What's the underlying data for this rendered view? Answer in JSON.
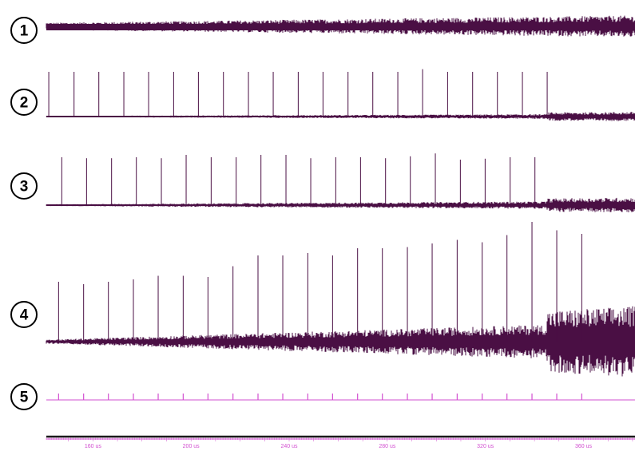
{
  "chart_data": {
    "type": "line",
    "xlabel": "",
    "ylabel": "",
    "xlim": [
      141,
      381
    ],
    "x_ticks": [
      {
        "value": 160,
        "label": "160 us"
      },
      {
        "value": 200,
        "label": "200 us"
      },
      {
        "value": 240,
        "label": "240 us"
      },
      {
        "value": 280,
        "label": "280 us"
      },
      {
        "value": 320,
        "label": "320 us"
      },
      {
        "value": 360,
        "label": "360 us"
      }
    ],
    "grid": false,
    "legend": "none",
    "colors": {
      "trace": "#4a0f44",
      "marker_trace": "#d24fd0",
      "axis": "#1a1a1a",
      "tick_label": "#d24fd0",
      "badge_text": "#000000"
    },
    "traces": [
      {
        "label": "1",
        "kind": "noise",
        "noise_start": 0.28,
        "noise_end": 0.85,
        "pulses_us": []
      },
      {
        "label": "2",
        "kind": "pulses",
        "noise_start": 0.04,
        "noise_end": 0.18,
        "pulses_us": [
          142.0,
          152.3,
          162.4,
          172.6,
          182.7,
          192.9,
          203.0,
          213.2,
          223.4,
          233.5,
          243.7,
          253.8,
          264.0,
          274.1,
          284.3,
          294.4,
          304.6,
          314.8,
          324.9,
          335.1,
          345.2
        ],
        "amplitudes": [
          1.0,
          1.0,
          1.0,
          1.0,
          1.0,
          1.0,
          1.0,
          1.0,
          1.0,
          1.0,
          1.0,
          1.0,
          1.0,
          1.0,
          1.0,
          1.06,
          1.0,
          1.0,
          1.0,
          1.0,
          1.0
        ]
      },
      {
        "label": "3",
        "kind": "pulses",
        "noise_start": 0.05,
        "noise_end": 0.24,
        "pulses_us": [
          147.3,
          157.4,
          167.6,
          177.7,
          187.9,
          198.0,
          208.2,
          218.4,
          228.5,
          238.7,
          248.8,
          259.0,
          269.1,
          279.3,
          289.4,
          299.6,
          309.8,
          319.9,
          330.1,
          340.2
        ],
        "amplitudes": [
          1.0,
          0.98,
          0.98,
          1.0,
          0.98,
          1.05,
          1.0,
          1.0,
          1.05,
          1.05,
          0.98,
          1.0,
          1.0,
          0.98,
          1.02,
          1.08,
          0.95,
          0.97,
          1.0,
          1.0
        ]
      },
      {
        "label": "4",
        "kind": "pulses",
        "noise_start": 0.04,
        "noise_end": 0.4,
        "pulses_us": [
          146.0,
          156.2,
          166.3,
          176.5,
          186.6,
          196.8,
          206.9,
          217.1,
          227.3,
          237.4,
          247.6,
          257.7,
          267.9,
          278.0,
          288.2,
          298.3,
          308.5,
          318.7,
          328.8,
          339.0,
          349.1,
          359.3
        ],
        "amplitudes": [
          0.5,
          0.48,
          0.5,
          0.52,
          0.55,
          0.55,
          0.54,
          0.63,
          0.72,
          0.72,
          0.74,
          0.72,
          0.78,
          0.78,
          0.79,
          0.82,
          0.85,
          0.83,
          0.89,
          1.0,
          0.93,
          0.9
        ]
      },
      {
        "label": "5",
        "kind": "markers",
        "noise_start": 0.0,
        "noise_end": 0.0,
        "pulses_us": [
          146.0,
          156.2,
          166.3,
          176.5,
          186.6,
          196.8,
          206.9,
          217.1,
          227.3,
          237.4,
          247.6,
          257.7,
          267.9,
          278.0,
          288.2,
          298.3,
          308.5,
          318.7,
          328.8,
          339.0,
          349.1,
          359.3
        ],
        "amplitudes": [
          1,
          1,
          1,
          1,
          1,
          1,
          1,
          1,
          1,
          1,
          1,
          1,
          1,
          1,
          1,
          1,
          1,
          1,
          1,
          1,
          1,
          1
        ]
      }
    ]
  }
}
